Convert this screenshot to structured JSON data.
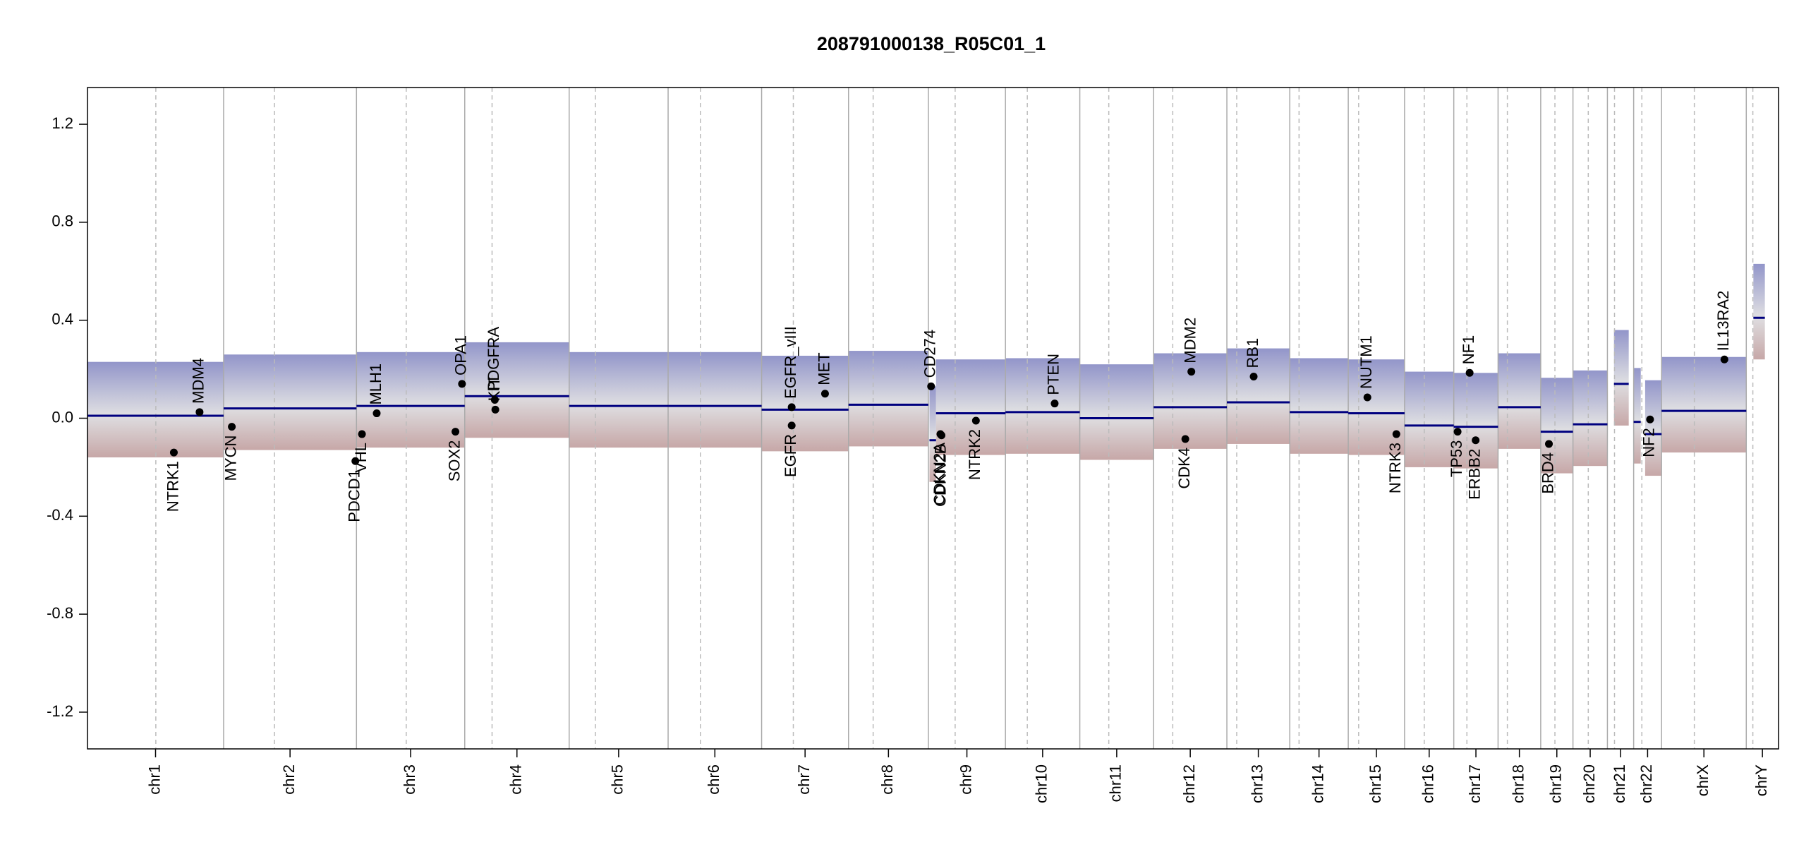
{
  "chart_data": {
    "type": "cnv",
    "title": "208791000138_R05C01_1",
    "xlim": [
      0,
      3093
    ],
    "ylim": [
      -1.35,
      1.35
    ],
    "yticks": [
      -1.2,
      -0.8,
      -0.4,
      {
        "value": 0,
        "label": "0.0"
      },
      0.4,
      0.8,
      1.2
    ],
    "segment_color": "#00007f",
    "gene_color": "#000000",
    "chromosomes": [
      {
        "name": "chr1",
        "start": 0,
        "end": 249,
        "centromere": 125
      },
      {
        "name": "chr2",
        "start": 249,
        "end": 492,
        "centromere": 342
      },
      {
        "name": "chr3",
        "start": 492,
        "end": 690,
        "centromere": 583
      },
      {
        "name": "chr4",
        "start": 690,
        "end": 881,
        "centromere": 740
      },
      {
        "name": "chr5",
        "start": 881,
        "end": 1062,
        "centromere": 929
      },
      {
        "name": "chr6",
        "start": 1062,
        "end": 1233,
        "centromere": 1121
      },
      {
        "name": "chr7",
        "start": 1233,
        "end": 1392,
        "centromere": 1291
      },
      {
        "name": "chr8",
        "start": 1392,
        "end": 1538,
        "centromere": 1437
      },
      {
        "name": "chr9",
        "start": 1538,
        "end": 1679,
        "centromere": 1587
      },
      {
        "name": "chr10",
        "start": 1679,
        "end": 1815,
        "centromere": 1719
      },
      {
        "name": "chr11",
        "start": 1815,
        "end": 1950,
        "centromere": 1868
      },
      {
        "name": "chr12",
        "start": 1950,
        "end": 2084,
        "centromere": 1985
      },
      {
        "name": "chr13",
        "start": 2084,
        "end": 2199,
        "centromere": 2102
      },
      {
        "name": "chr14",
        "start": 2199,
        "end": 2306,
        "centromere": 2216
      },
      {
        "name": "chr15",
        "start": 2306,
        "end": 2409,
        "centromere": 2325
      },
      {
        "name": "chr16",
        "start": 2409,
        "end": 2499,
        "centromere": 2445
      },
      {
        "name": "chr17",
        "start": 2499,
        "end": 2580,
        "centromere": 2523
      },
      {
        "name": "chr18",
        "start": 2580,
        "end": 2658,
        "centromere": 2597
      },
      {
        "name": "chr19",
        "start": 2658,
        "end": 2717,
        "centromere": 2684
      },
      {
        "name": "chr20",
        "start": 2717,
        "end": 2780,
        "centromere": 2745
      },
      {
        "name": "chr21",
        "start": 2780,
        "end": 2828,
        "centromere": 2793
      },
      {
        "name": "chr22",
        "start": 2828,
        "end": 2879,
        "centromere": 2843
      },
      {
        "name": "chrX",
        "start": 2879,
        "end": 3034,
        "centromere": 2939
      },
      {
        "name": "chrY",
        "start": 3034,
        "end": 3093,
        "centromere": 3046
      }
    ],
    "segments": [
      {
        "start": 0,
        "end": 249,
        "value": 0.01
      },
      {
        "start": 249,
        "end": 492,
        "value": 0.04
      },
      {
        "start": 492,
        "end": 690,
        "value": 0.05
      },
      {
        "start": 690,
        "end": 881,
        "value": 0.09
      },
      {
        "start": 881,
        "end": 1062,
        "value": 0.05
      },
      {
        "start": 1062,
        "end": 1233,
        "value": 0.05
      },
      {
        "start": 1233,
        "end": 1392,
        "value": 0.035
      },
      {
        "start": 1392,
        "end": 1538,
        "value": 0.055
      },
      {
        "start": 1540,
        "end": 1552,
        "value": -0.09
      },
      {
        "start": 1552,
        "end": 1679,
        "value": 0.02
      },
      {
        "start": 1679,
        "end": 1815,
        "value": 0.025
      },
      {
        "start": 1815,
        "end": 1950,
        "value": 0.0
      },
      {
        "start": 1950,
        "end": 2084,
        "value": 0.045
      },
      {
        "start": 2084,
        "end": 2199,
        "value": 0.065
      },
      {
        "start": 2199,
        "end": 2306,
        "value": 0.025
      },
      {
        "start": 2306,
        "end": 2409,
        "value": 0.02
      },
      {
        "start": 2409,
        "end": 2499,
        "value": -0.03
      },
      {
        "start": 2499,
        "end": 2580,
        "value": -0.035
      },
      {
        "start": 2580,
        "end": 2658,
        "value": 0.045
      },
      {
        "start": 2658,
        "end": 2717,
        "value": -0.055
      },
      {
        "start": 2717,
        "end": 2780,
        "value": -0.025
      },
      {
        "start": 2792,
        "end": 2819,
        "value": 0.14
      },
      {
        "start": 2828,
        "end": 2841,
        "value": -0.015
      },
      {
        "start": 2849,
        "end": 2879,
        "value": -0.065
      },
      {
        "start": 2879,
        "end": 3034,
        "value": 0.03
      },
      {
        "start": 3047,
        "end": 3068,
        "value": 0.41
      }
    ],
    "genes": [
      {
        "name": "NTRK1",
        "x": 158,
        "value": -0.14,
        "side": "below"
      },
      {
        "name": "MDM4",
        "x": 205,
        "value": 0.025,
        "side": "above"
      },
      {
        "name": "MYCN",
        "x": 264,
        "value": -0.035,
        "side": "below"
      },
      {
        "name": "PDCD1",
        "x": 490,
        "value": -0.175,
        "side": "below"
      },
      {
        "name": "VHL",
        "x": 502,
        "value": -0.065,
        "side": "below"
      },
      {
        "name": "MLH1",
        "x": 529,
        "value": 0.02,
        "side": "above"
      },
      {
        "name": "SOX2",
        "x": 673,
        "value": -0.055,
        "side": "below"
      },
      {
        "name": "OPA1",
        "x": 685,
        "value": 0.14,
        "side": "above"
      },
      {
        "name": "PDGFRA",
        "x": 745,
        "value": 0.075,
        "side": "above"
      },
      {
        "name": "KIT",
        "x": 746,
        "value": 0.035,
        "side": "above"
      },
      {
        "name": "EGFR",
        "x": 1288,
        "value": -0.03,
        "side": "below"
      },
      {
        "name": "EGFR_vIII",
        "x": 1288,
        "value": 0.045,
        "side": "above"
      },
      {
        "name": "MET",
        "x": 1349,
        "value": 0.1,
        "side": "above"
      },
      {
        "name": "CD274",
        "x": 1543,
        "value": 0.13,
        "side": "above"
      },
      {
        "name": "CDKN2A",
        "x": 1560,
        "value": -0.065,
        "side": "below"
      },
      {
        "name": "CDKN2B",
        "x": 1562,
        "value": -0.07,
        "side": "below"
      },
      {
        "name": "NTRK2",
        "x": 1625,
        "value": -0.01,
        "side": "below"
      },
      {
        "name": "PTEN",
        "x": 1769,
        "value": 0.06,
        "side": "above"
      },
      {
        "name": "CDK4",
        "x": 2008,
        "value": -0.085,
        "side": "below"
      },
      {
        "name": "MDM2",
        "x": 2019,
        "value": 0.19,
        "side": "above"
      },
      {
        "name": "RB1",
        "x": 2133,
        "value": 0.17,
        "side": "above"
      },
      {
        "name": "NUTM1",
        "x": 2341,
        "value": 0.085,
        "side": "above"
      },
      {
        "name": "NTRK3",
        "x": 2394,
        "value": -0.065,
        "side": "below"
      },
      {
        "name": "TP53",
        "x": 2506,
        "value": -0.055,
        "side": "below"
      },
      {
        "name": "NF1",
        "x": 2528,
        "value": 0.185,
        "side": "above"
      },
      {
        "name": "ERBB2",
        "x": 2539,
        "value": -0.09,
        "side": "below"
      },
      {
        "name": "BRD4",
        "x": 2673,
        "value": -0.105,
        "side": "below"
      },
      {
        "name": "NF2",
        "x": 2858,
        "value": -0.005,
        "side": "below"
      },
      {
        "name": "IL13RA2",
        "x": 2994,
        "value": 0.24,
        "side": "above"
      }
    ]
  }
}
